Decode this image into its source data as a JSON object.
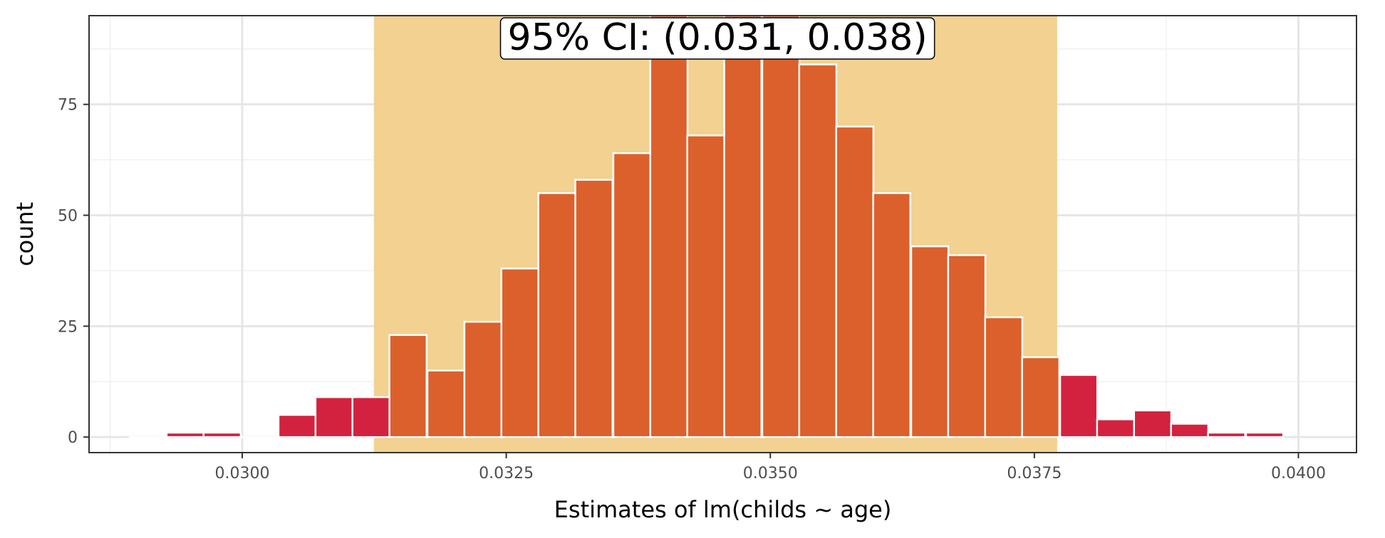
{
  "chart_data": {
    "type": "bar",
    "title": "",
    "xlabel": "Estimates of lm(childs ~ age)",
    "ylabel": "count",
    "xlim": [
      0.02855,
      0.04055
    ],
    "ylim": [
      -3.5,
      95
    ],
    "x_ticks": [
      {
        "value": 0.03,
        "label": "0.0300"
      },
      {
        "value": 0.0325,
        "label": "0.0325"
      },
      {
        "value": 0.035,
        "label": "0.0350"
      },
      {
        "value": 0.0375,
        "label": "0.0375"
      },
      {
        "value": 0.04,
        "label": "0.0400"
      }
    ],
    "x_minor_ticks": [
      0.02875,
      0.03125,
      0.03375,
      0.03625,
      0.03875
    ],
    "y_ticks": [
      {
        "value": 0,
        "label": "0"
      },
      {
        "value": 25,
        "label": "25"
      },
      {
        "value": 50,
        "label": "50"
      },
      {
        "value": 75,
        "label": "75"
      }
    ],
    "y_minor_ticks": [
      12.5,
      37.5,
      62.5,
      87.5
    ],
    "bin_width": 0.000352,
    "bins": [
      {
        "x": 0.02911,
        "count": 0
      },
      {
        "x": 0.02946,
        "count": 1
      },
      {
        "x": 0.02981,
        "count": 1
      },
      {
        "x": 0.03016,
        "count": 0
      },
      {
        "x": 0.03052,
        "count": 5
      },
      {
        "x": 0.03087,
        "count": 9
      },
      {
        "x": 0.03122,
        "count": 9
      },
      {
        "x": 0.03157,
        "count": 23
      },
      {
        "x": 0.03193,
        "count": 15
      },
      {
        "x": 0.03228,
        "count": 26
      },
      {
        "x": 0.03263,
        "count": 38
      },
      {
        "x": 0.03298,
        "count": 55
      },
      {
        "x": 0.03333,
        "count": 58
      },
      {
        "x": 0.03369,
        "count": 64
      },
      {
        "x": 0.03404,
        "count": 104
      },
      {
        "x": 0.03439,
        "count": 68
      },
      {
        "x": 0.03474,
        "count": 100
      },
      {
        "x": 0.0351,
        "count": 96
      },
      {
        "x": 0.03545,
        "count": 84
      },
      {
        "x": 0.0358,
        "count": 70
      },
      {
        "x": 0.03615,
        "count": 55
      },
      {
        "x": 0.03651,
        "count": 43
      },
      {
        "x": 0.03686,
        "count": 41
      },
      {
        "x": 0.03721,
        "count": 27
      },
      {
        "x": 0.03756,
        "count": 18
      },
      {
        "x": 0.03792,
        "count": 14
      },
      {
        "x": 0.03827,
        "count": 4
      },
      {
        "x": 0.03862,
        "count": 6
      },
      {
        "x": 0.03897,
        "count": 3
      },
      {
        "x": 0.03932,
        "count": 1
      },
      {
        "x": 0.03968,
        "count": 1
      }
    ],
    "ci": {
      "lower": 0.031248,
      "upper": 0.037716
    },
    "annotation": {
      "label": "95% CI: (0.031, 0.038)",
      "x": 0.0345
    },
    "colors": {
      "in_ci": "#dc602c",
      "out_ci": "#d3223f",
      "ci_band": "#f2cf8d",
      "bar_outline": "#ffffff",
      "panel_border": "#333333",
      "grid_major": "#e6e6e6",
      "grid_minor": "#f0f0f0"
    },
    "grid": true,
    "legend": "none"
  }
}
